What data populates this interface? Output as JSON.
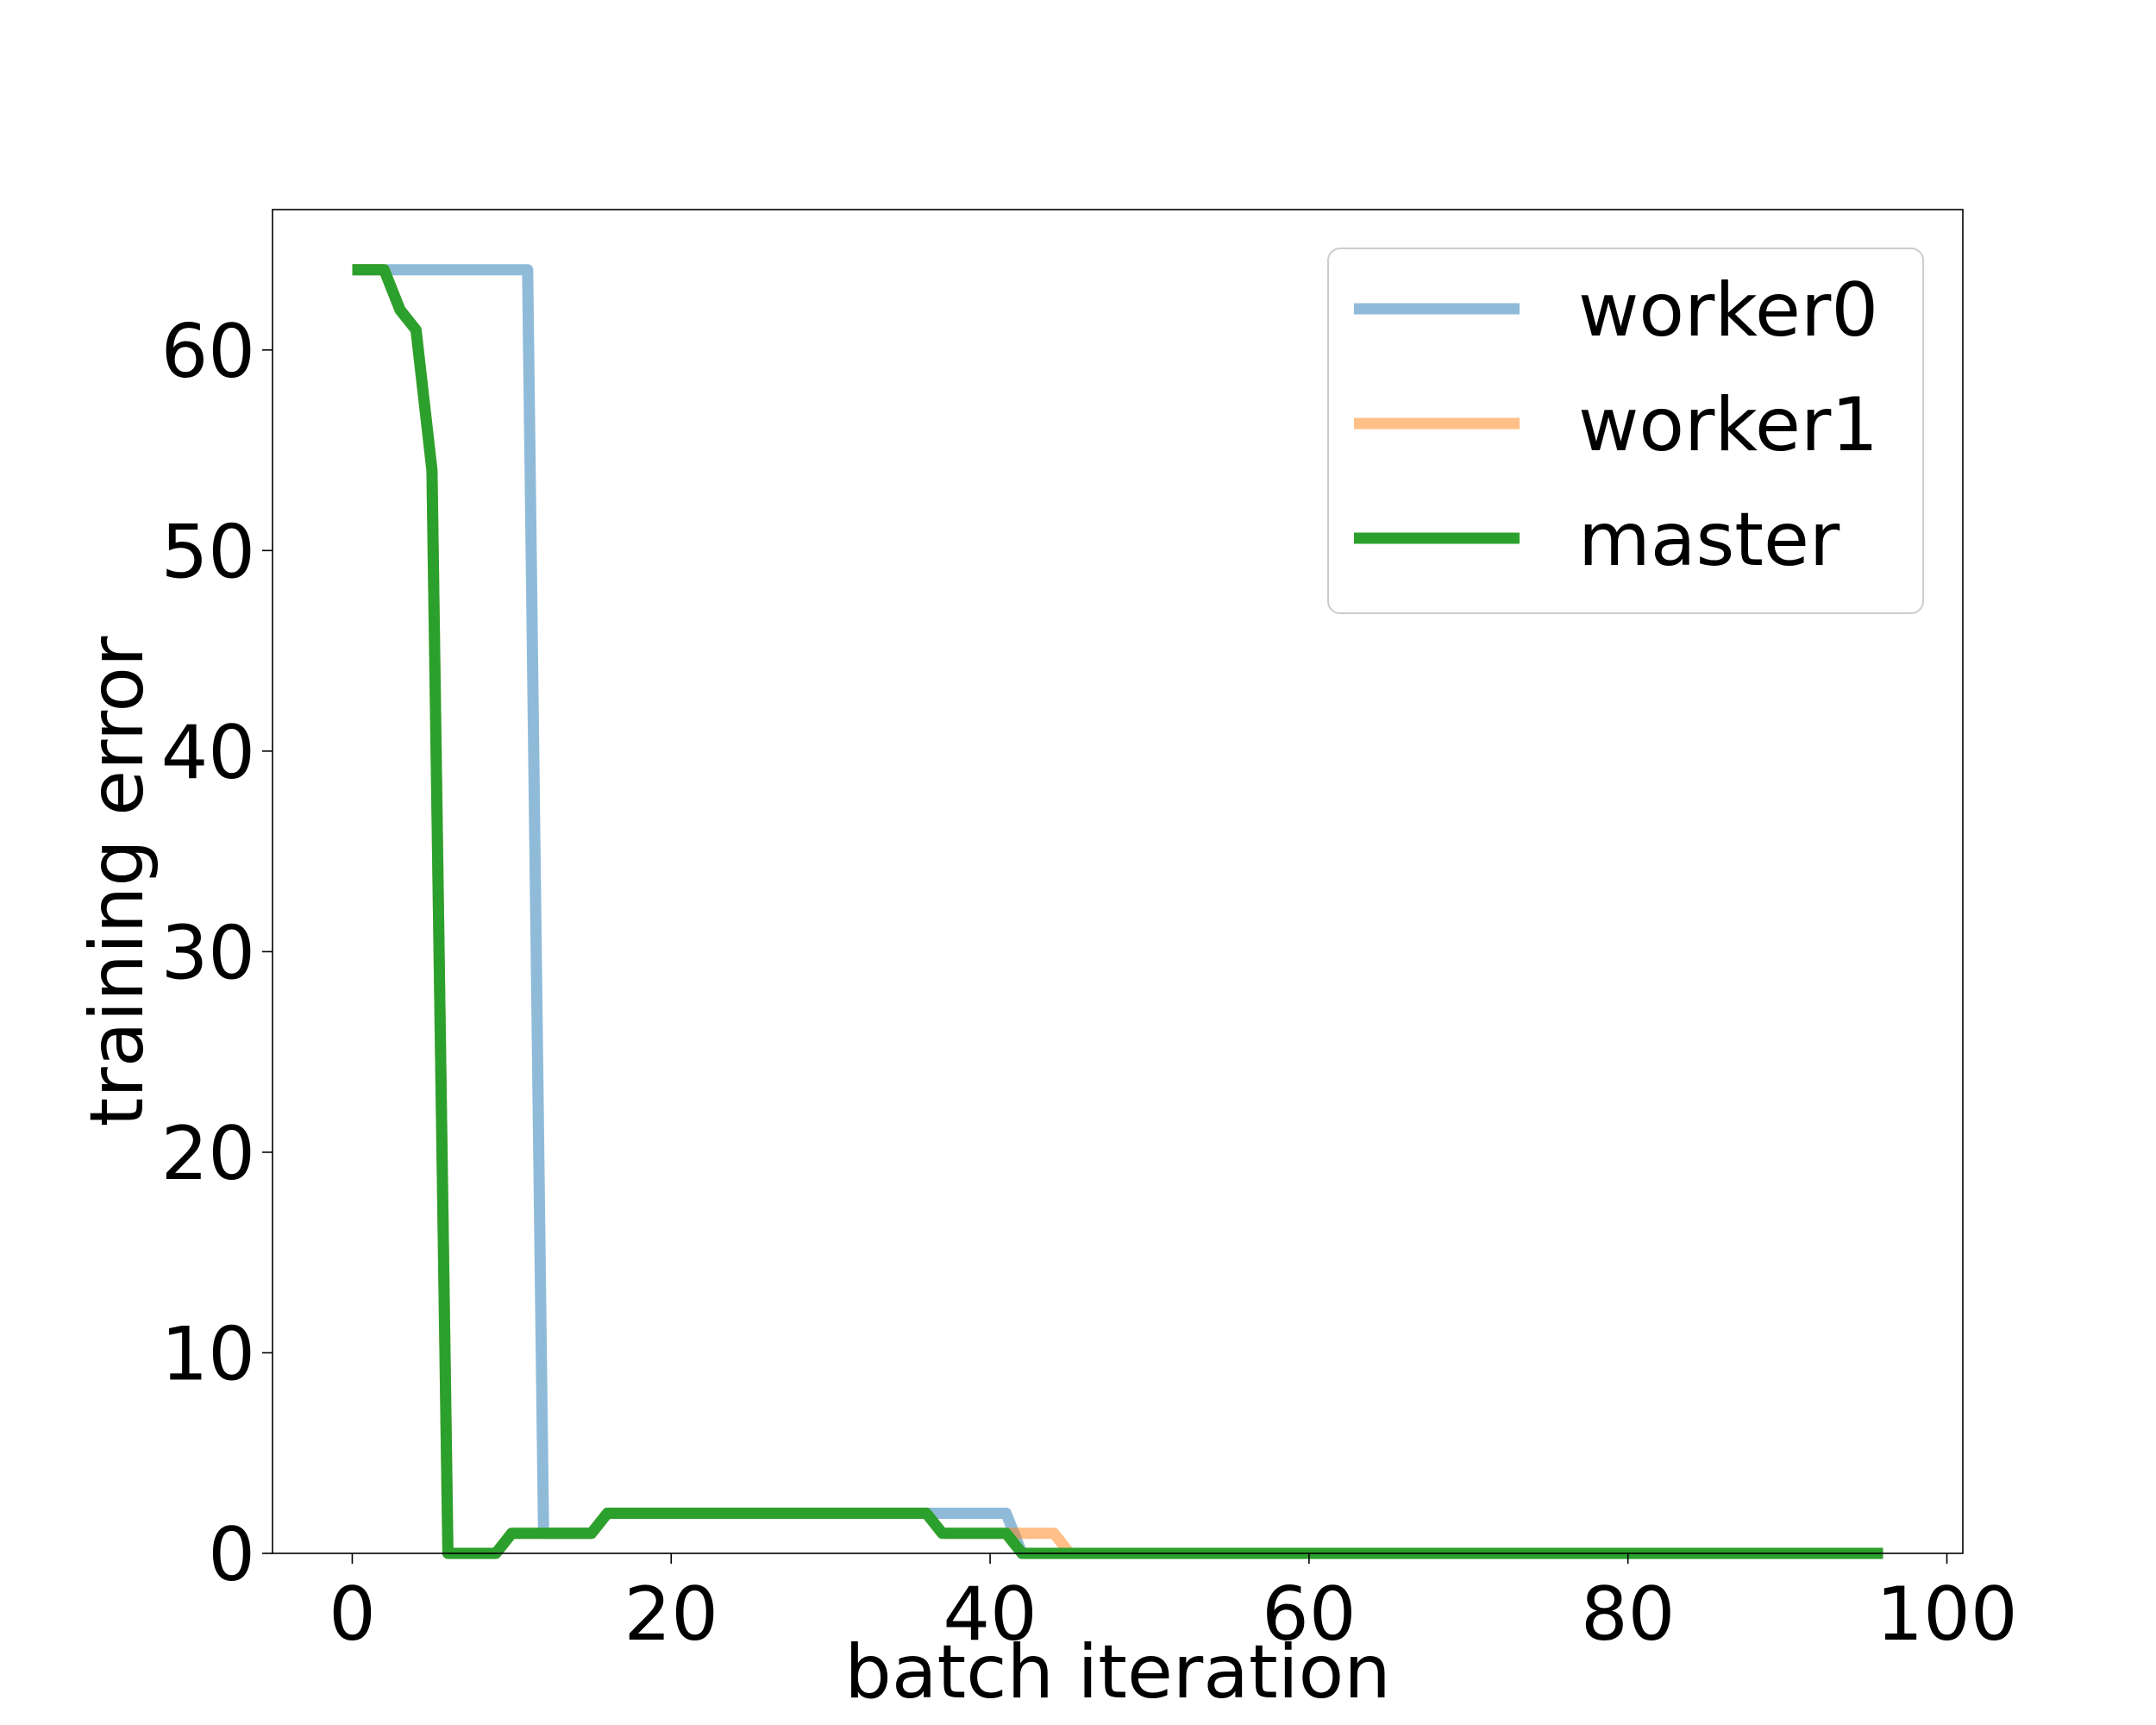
{
  "chart_data": {
    "type": "line",
    "title": "",
    "xlabel": "batch iteration",
    "ylabel": "training error",
    "xlim": [
      -5,
      101
    ],
    "ylim": [
      0,
      67
    ],
    "xticks": [
      0,
      20,
      40,
      60,
      80,
      100
    ],
    "yticks": [
      0,
      10,
      20,
      30,
      40,
      50,
      60
    ],
    "grid": false,
    "legend_position": "top-right",
    "series": [
      {
        "name": "worker0",
        "color": "#1f77b4",
        "alpha": 0.5,
        "points": [
          [
            0,
            64
          ],
          [
            11,
            64
          ],
          [
            12,
            1
          ],
          [
            15,
            1
          ],
          [
            16,
            2
          ],
          [
            41,
            2
          ],
          [
            42,
            0
          ],
          [
            96,
            0
          ]
        ]
      },
      {
        "name": "worker1",
        "color": "#ff7f0e",
        "alpha": 0.5,
        "points": [
          [
            0,
            64
          ],
          [
            2,
            64
          ],
          [
            3,
            62
          ],
          [
            4,
            61
          ],
          [
            5,
            54
          ],
          [
            6,
            0
          ],
          [
            9,
            0
          ],
          [
            10,
            1
          ],
          [
            15,
            1
          ],
          [
            16,
            2
          ],
          [
            36,
            2
          ],
          [
            37,
            1
          ],
          [
            44,
            1
          ],
          [
            45,
            0
          ],
          [
            96,
            0
          ]
        ]
      },
      {
        "name": "master",
        "color": "#2ca02c",
        "alpha": 1,
        "points": [
          [
            0,
            64
          ],
          [
            2,
            64
          ],
          [
            3,
            62
          ],
          [
            4,
            61
          ],
          [
            5,
            54
          ],
          [
            6,
            0
          ],
          [
            9,
            0
          ],
          [
            10,
            1
          ],
          [
            15,
            1
          ],
          [
            16,
            2
          ],
          [
            36,
            2
          ],
          [
            37,
            1
          ],
          [
            41,
            1
          ],
          [
            42,
            0
          ],
          [
            96,
            0
          ]
        ]
      }
    ]
  }
}
